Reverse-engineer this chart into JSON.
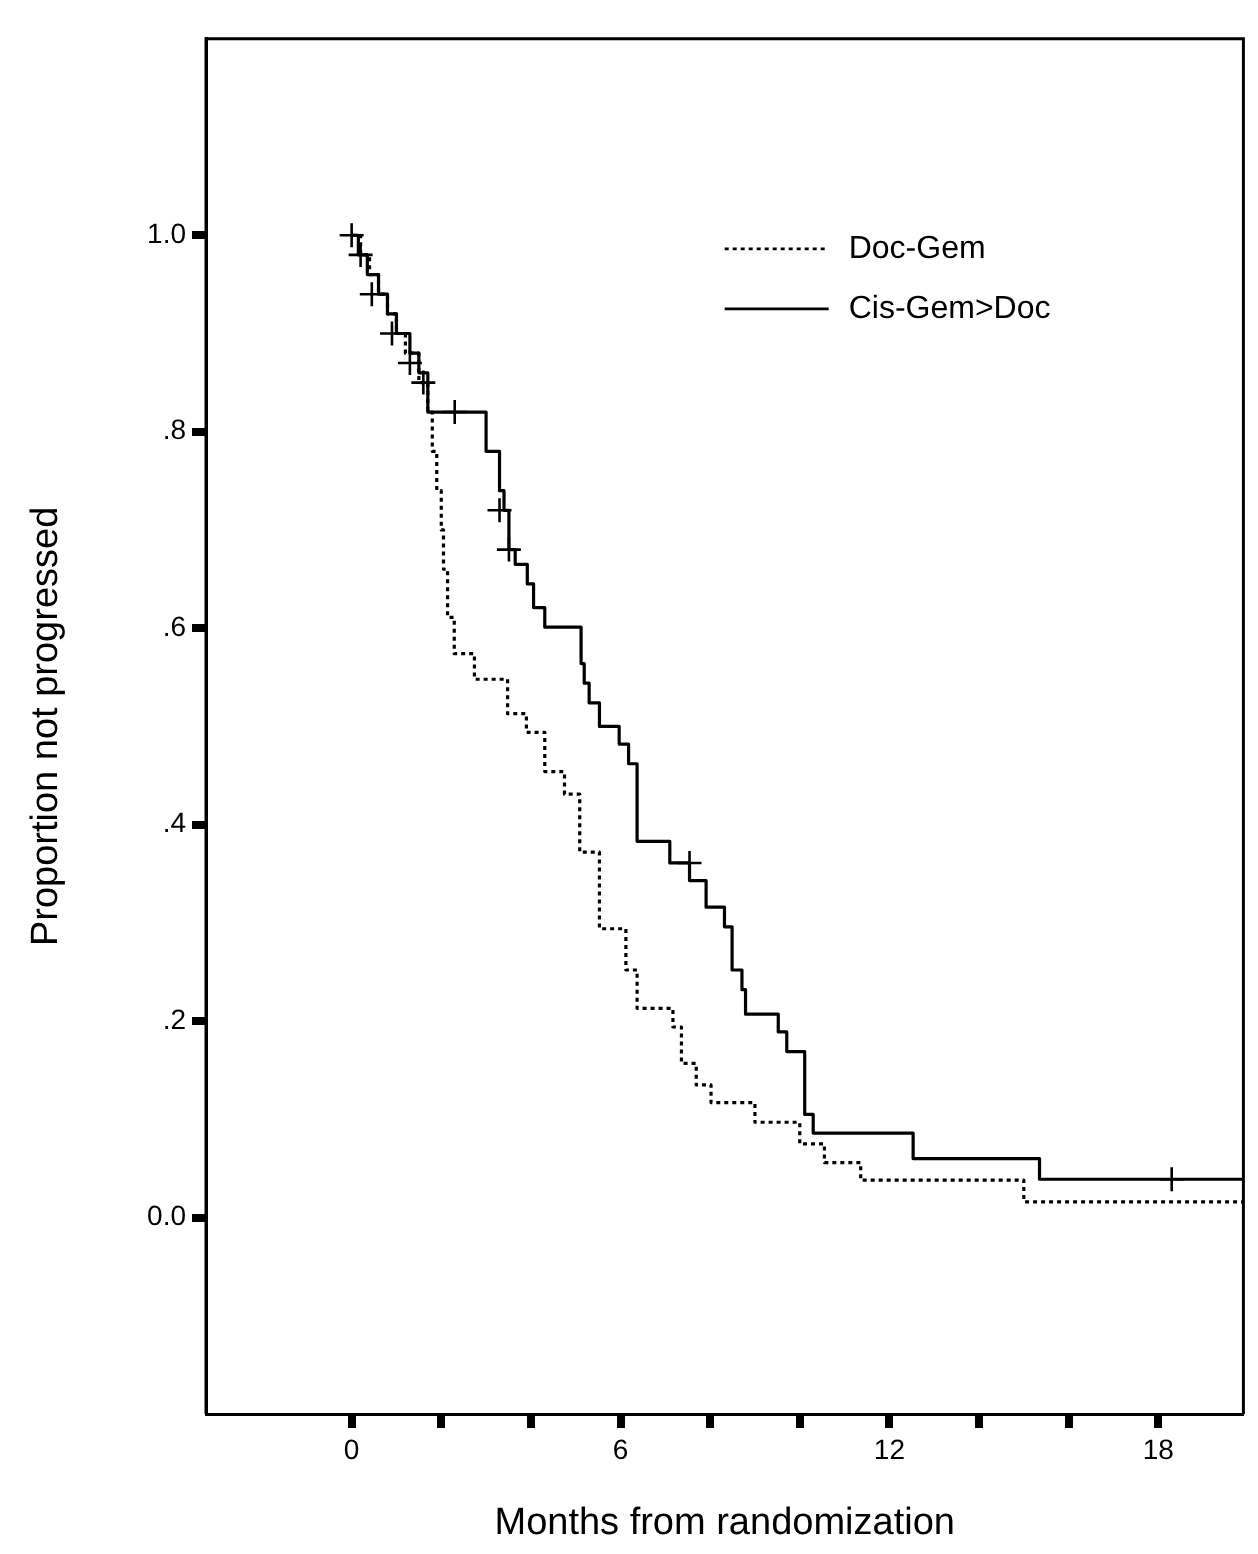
{
  "chart_data": {
    "type": "step",
    "xlabel": "Months from randomization",
    "ylabel": "Proportion not progressed",
    "xlim": [
      -3.25,
      19.9
    ],
    "ylim": [
      -0.2,
      1.2
    ],
    "xticks": [
      0,
      {
        "value": 2,
        "label": null
      },
      {
        "value": 4,
        "label": null
      },
      6,
      {
        "value": 8,
        "label": null
      },
      {
        "value": 10,
        "label": null
      },
      12,
      {
        "value": 14,
        "label": null
      },
      {
        "value": 16,
        "label": null
      },
      18
    ],
    "yticks": [
      {
        "value": 0,
        "label": "0.0"
      },
      {
        "value": 0.2,
        "label": ".2"
      },
      {
        "value": 0.4,
        "label": ".4"
      },
      {
        "value": 0.6,
        "label": ".6"
      },
      {
        "value": 0.8,
        "label": ".8"
      },
      {
        "value": 1,
        "label": "1.0"
      }
    ],
    "grid": false,
    "legend": "top right",
    "marker": "none",
    "series": [
      {
        "name": "Doc-Gem",
        "color": "#000000",
        "line_style": "dotted",
        "x": [
          0,
          0.2,
          0.4,
          0.6,
          0.8,
          1.0,
          1.2,
          1.5,
          1.7,
          1.8,
          1.9,
          2.0,
          2.05,
          2.14,
          2.29,
          2.74,
          3.48,
          3.9,
          4.31,
          4.75,
          5.09,
          5.53,
          6.12,
          6.37,
          7.17,
          7.36,
          7.69,
          8.02,
          9.0,
          10.0,
          10.55,
          11.36,
          15.0,
          19.9
        ],
        "values": [
          1.0,
          0.98,
          0.96,
          0.94,
          0.92,
          0.9,
          0.88,
          0.85,
          0.82,
          0.78,
          0.74,
          0.7,
          0.66,
          0.611,
          0.574,
          0.548,
          0.513,
          0.494,
          0.454,
          0.431,
          0.372,
          0.294,
          0.252,
          0.213,
          0.194,
          0.157,
          0.135,
          0.117,
          0.097,
          0.075,
          0.056,
          0.038,
          0.016,
          0.016
        ]
      },
      {
        "name": "Cis-Gem>Doc",
        "color": "#000000",
        "line_style": "solid",
        "x": [
          0,
          0.15,
          0.35,
          0.6,
          0.8,
          1.0,
          1.3,
          1.5,
          1.7,
          3.0,
          3.3,
          3.4,
          3.51,
          3.65,
          3.92,
          4.06,
          4.31,
          5.12,
          5.19,
          5.3,
          5.53,
          5.97,
          6.18,
          6.37,
          7.1,
          7.54,
          7.91,
          8.32,
          8.49,
          8.71,
          8.79,
          9.52,
          9.71,
          10.11,
          10.3,
          12.53,
          15.35,
          19.9
        ],
        "values": [
          1.0,
          0.98,
          0.96,
          0.94,
          0.92,
          0.9,
          0.88,
          0.86,
          0.82,
          0.78,
          0.74,
          0.72,
          0.68,
          0.665,
          0.645,
          0.621,
          0.601,
          0.564,
          0.544,
          0.524,
          0.5,
          0.482,
          0.462,
          0.383,
          0.361,
          0.343,
          0.316,
          0.296,
          0.252,
          0.232,
          0.207,
          0.189,
          0.169,
          0.105,
          0.086,
          0.06,
          0.039,
          0.039
        ]
      },
      {
        "type": "scatter",
        "marker": "cross",
        "color": "#000000",
        "x": [
          0.0,
          0.2,
          0.45,
          0.9,
          1.3,
          1.6,
          2.3,
          3.3,
          3.51,
          7.54,
          18.3
        ],
        "values": [
          1.0,
          0.98,
          0.94,
          0.9,
          0.87,
          0.85,
          0.82,
          0.72,
          0.68,
          0.361,
          0.039
        ]
      }
    ]
  }
}
